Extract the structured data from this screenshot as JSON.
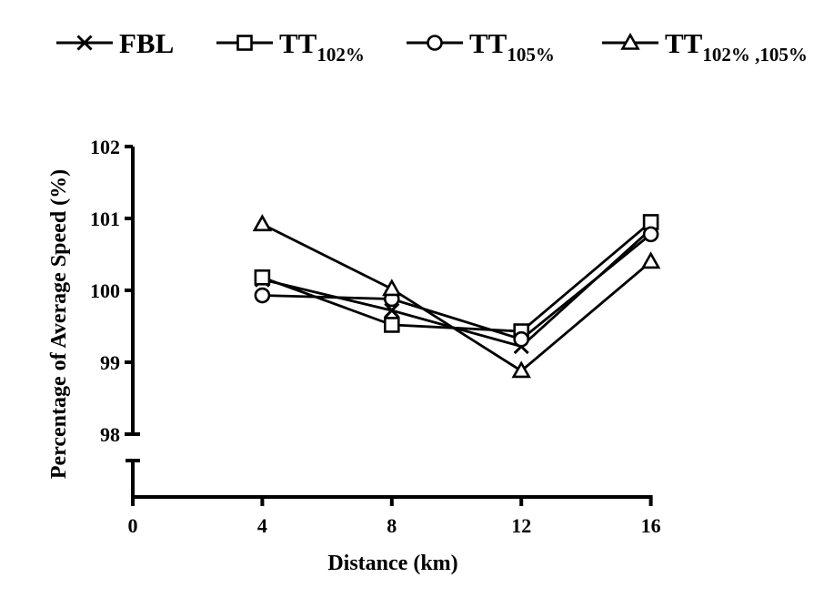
{
  "chart_data": {
    "type": "line",
    "xlabel": "Distance (km)",
    "ylabel": "Percentage of Average Speed (%)",
    "x": [
      4,
      8,
      12,
      16
    ],
    "x_ticks": [
      "0",
      "4",
      "8",
      "12",
      "16"
    ],
    "xlim": [
      0,
      16
    ],
    "y_ticks": [
      "98",
      "99",
      "100",
      "101",
      "102"
    ],
    "ylim": [
      98,
      102
    ],
    "y_axis_break": true,
    "grid": false,
    "legend_position": "top",
    "series": [
      {
        "name": "FBL",
        "name_base": "FBL",
        "name_sub": "",
        "marker": "x",
        "values": [
          100.15,
          99.72,
          99.22,
          100.85
        ]
      },
      {
        "name": "TT102%",
        "name_base": "TT",
        "name_sub": "102%",
        "marker": "square",
        "values": [
          100.18,
          99.52,
          99.43,
          100.95
        ]
      },
      {
        "name": "TT105%",
        "name_base": "TT",
        "name_sub": "105%",
        "marker": "circle",
        "values": [
          99.93,
          99.88,
          99.32,
          100.78
        ]
      },
      {
        "name": "TT102% ,105%",
        "name_base": "TT",
        "name_sub": "102% ,105%",
        "marker": "triangle",
        "values": [
          100.92,
          100.02,
          98.88,
          100.4
        ]
      }
    ]
  }
}
